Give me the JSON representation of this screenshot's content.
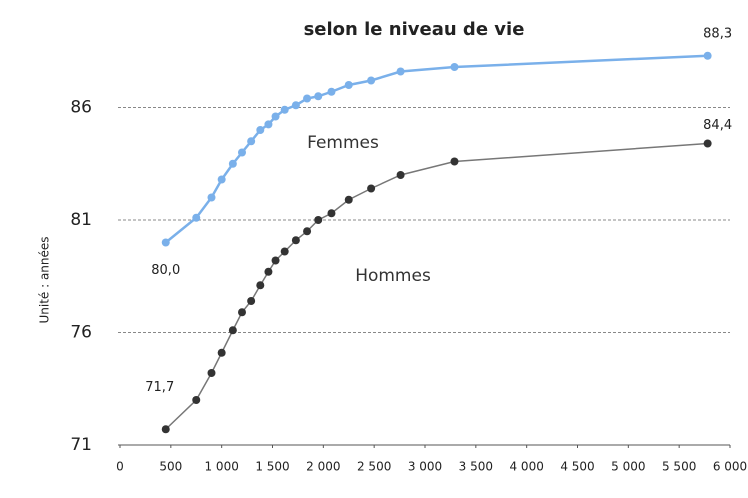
{
  "chart_data": {
    "type": "line",
    "title": "selon le niveau de vie",
    "y_label": "Unité : années",
    "xlim": [
      0,
      6000
    ],
    "ylim": [
      71,
      89
    ],
    "xticks": [
      0,
      500,
      {
        "value": 1000,
        "label": "1 000"
      },
      {
        "value": 1500,
        "label": "1 500"
      },
      {
        "value": 2000,
        "label": "2 000"
      },
      {
        "value": 2500,
        "label": "2 500"
      },
      {
        "value": 3000,
        "label": "3 000"
      },
      {
        "value": 3500,
        "label": "3 500"
      },
      {
        "value": 4000,
        "label": "4 000"
      },
      {
        "value": 4500,
        "label": "4 500"
      },
      {
        "value": 5000,
        "label": "5 000"
      },
      {
        "value": 5500,
        "label": "5 500"
      },
      {
        "value": 6000,
        "label": "6 000"
      }
    ],
    "yticks": [
      71,
      76,
      81,
      86
    ],
    "grid": true,
    "x": [
      450,
      750,
      900,
      1000,
      1110,
      1200,
      1290,
      1380,
      1460,
      1530,
      1620,
      1730,
      1840,
      1950,
      2080,
      2250,
      2470,
      2760,
      3290,
      5780
    ],
    "series": [
      {
        "name": "Femmes",
        "color": "#7ab0ea",
        "values": [
          80.0,
          81.1,
          82.0,
          82.8,
          83.5,
          84.0,
          84.5,
          85.0,
          85.25,
          85.6,
          85.9,
          86.1,
          86.4,
          86.5,
          86.7,
          87.0,
          87.2,
          87.6,
          87.8,
          88.3
        ],
        "value_labels": [
          "80,0",
          null,
          null,
          null,
          null,
          null,
          null,
          null,
          null,
          null,
          null,
          null,
          null,
          null,
          null,
          null,
          null,
          null,
          null,
          "88,3"
        ]
      },
      {
        "name": "Hommes",
        "color": "#333333",
        "values": [
          71.7,
          73.0,
          74.2,
          75.1,
          76.1,
          76.9,
          77.4,
          78.1,
          78.7,
          79.2,
          79.6,
          80.1,
          80.5,
          81.0,
          81.3,
          81.9,
          82.4,
          83.0,
          83.6,
          84.4
        ],
        "value_labels": [
          "71,7",
          null,
          null,
          null,
          null,
          null,
          null,
          null,
          null,
          null,
          null,
          null,
          null,
          null,
          null,
          null,
          null,
          null,
          null,
          "84,4"
        ]
      }
    ]
  }
}
